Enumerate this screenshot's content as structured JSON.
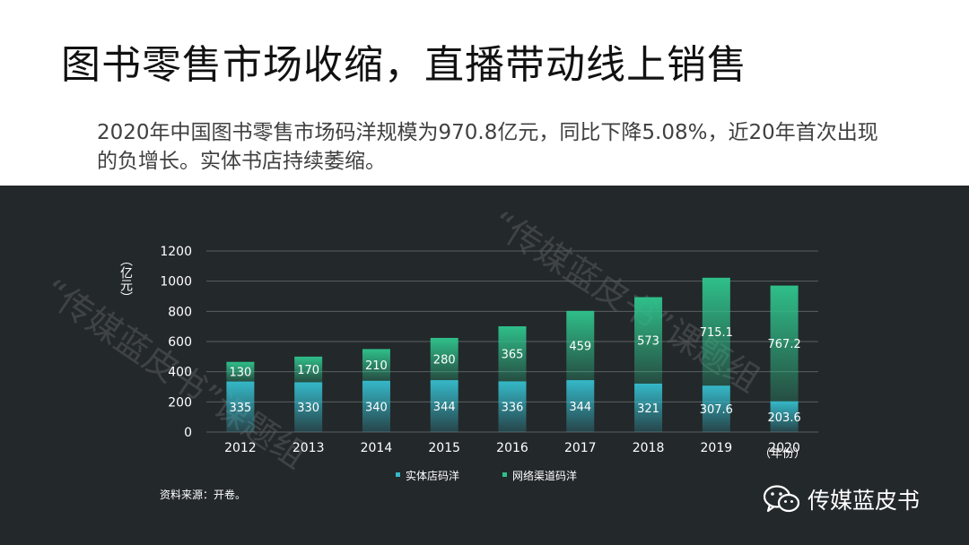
{
  "title": "图书零售市场收缩，直播带动线上销售",
  "subtitle": "2020年中国图书零售市场码洋规模为970.8亿元，同比下降5.08%，近20年首次出现的负增长。实体书店持续萎缩。",
  "watermark": "“传媒蓝皮书”课题组",
  "source": "资料来源：开卷。",
  "brand": {
    "name": "传媒蓝皮书",
    "icon": "wechat-icon"
  },
  "colors": {
    "physical": "#35b8c8",
    "online": "#2fbf8a",
    "background": "#23282a"
  },
  "chart_data": {
    "type": "bar",
    "stacked": true,
    "categories": [
      "2012",
      "2013",
      "2014",
      "2015",
      "2016",
      "2017",
      "2018",
      "2019",
      "2020"
    ],
    "series": [
      {
        "name": "实体店码洋",
        "values": [
          335,
          330,
          340,
          344,
          336,
          344,
          321,
          307.6,
          203.6
        ],
        "labels": [
          "335",
          "330",
          "340",
          "344",
          "336",
          "344",
          "321",
          "307.6",
          "203.6"
        ]
      },
      {
        "name": "网络渠道码洋",
        "values": [
          130,
          170,
          210,
          280,
          365,
          459,
          573,
          715.1,
          767.2
        ],
        "labels": [
          "130",
          "170",
          "210",
          "280",
          "365",
          "459",
          "573",
          "715.1",
          "767.2"
        ]
      }
    ],
    "xlabel": "（年份）",
    "ylabel": "（亿元）",
    "ylim": [
      0,
      1200
    ],
    "yticks": [
      "0",
      "200",
      "400",
      "600",
      "800",
      "1000",
      "1200"
    ],
    "grid": true,
    "legend": "bottom"
  }
}
